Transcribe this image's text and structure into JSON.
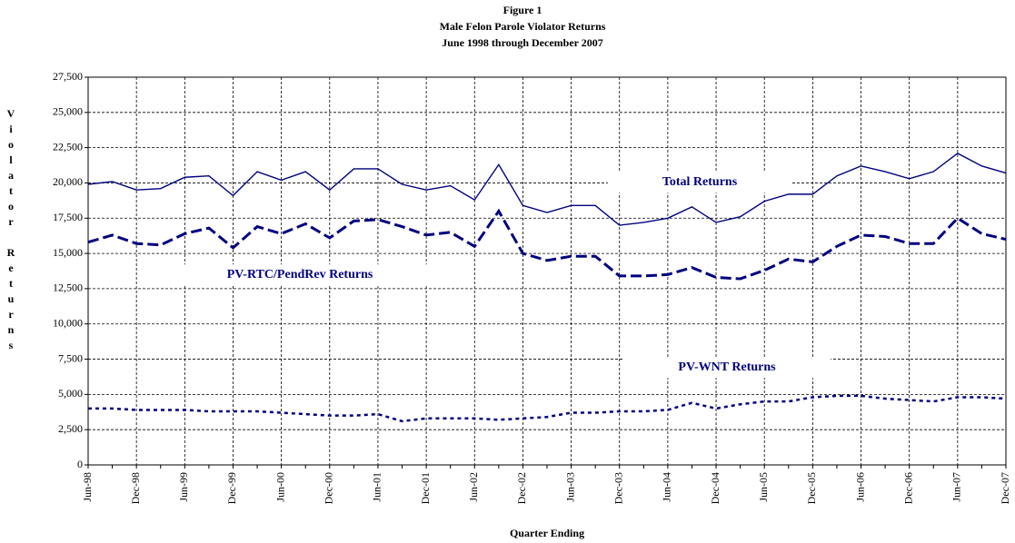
{
  "chart_data": {
    "type": "line",
    "title_lines": [
      "Figure 1",
      "Male Felon Parole Violator Returns",
      "June 1998 through December 2007"
    ],
    "x_label": "Quarter Ending",
    "y_label": "Violator Returns",
    "categories": [
      "Jun-98",
      null,
      "Dec-98",
      null,
      "Jun-99",
      null,
      "Dec-99",
      null,
      "Jun-00",
      null,
      "Dec-00",
      null,
      "Jun-01",
      null,
      "Dec-01",
      null,
      "Jun-02",
      null,
      "Dec-02",
      null,
      "Jun-03",
      null,
      "Dec-03",
      null,
      "Jun-04",
      null,
      "Dec-04",
      null,
      "Jun-05",
      null,
      "Dec-05",
      null,
      "Jun-06",
      null,
      "Dec-06",
      null,
      "Jun-07",
      null,
      "Dec-07"
    ],
    "series": [
      {
        "name": "Total Returns",
        "color": "#000080",
        "line_style": "solid",
        "values": [
          19900,
          20100,
          19500,
          19600,
          20400,
          20500,
          19100,
          20800,
          20200,
          20800,
          19500,
          21000,
          21000,
          19900,
          19500,
          19800,
          18800,
          21300,
          18400,
          17900,
          18400,
          18400,
          17000,
          17200,
          17500,
          18300,
          17200,
          17600,
          18700,
          19200,
          19200,
          20500,
          21200,
          20800,
          20300,
          20800,
          22100,
          21200,
          20700
        ]
      },
      {
        "name": "PV-RTC/PendRev Returns",
        "color": "#000080",
        "line_style": "dashed",
        "values": [
          15800,
          16300,
          15700,
          15600,
          16400,
          16800,
          15400,
          16900,
          16400,
          17100,
          16100,
          17300,
          17400,
          16900,
          16300,
          16500,
          15500,
          18000,
          15000,
          14500,
          14800,
          14800,
          13400,
          13400,
          13500,
          14000,
          13300,
          13200,
          13800,
          14600,
          14400,
          15500,
          16300,
          16200,
          15700,
          15700,
          17500,
          16400,
          16000
        ]
      },
      {
        "name": "PV-WNT Returns",
        "color": "#000080",
        "line_style": "dotted",
        "values": [
          4000,
          4000,
          3900,
          3900,
          3900,
          3800,
          3800,
          3800,
          3700,
          3600,
          3500,
          3500,
          3600,
          3100,
          3300,
          3300,
          3300,
          3200,
          3300,
          3400,
          3700,
          3700,
          3800,
          3800,
          3900,
          4400,
          4000,
          4300,
          4500,
          4500,
          4800,
          4900,
          4900,
          4700,
          4600,
          4500,
          4800,
          4800,
          4700
        ]
      }
    ],
    "ylim": [
      0,
      27500
    ],
    "yticks": [
      0,
      {
        "value": 2500,
        "label": "2,500"
      },
      {
        "value": 5000,
        "label": "5,000"
      },
      {
        "value": 7500,
        "label": "7,500"
      },
      {
        "value": 10000,
        "label": "10,000"
      },
      {
        "value": 12500,
        "label": "12,500"
      },
      {
        "value": 15000,
        "label": "15,000"
      },
      {
        "value": 17500,
        "label": "17,500"
      },
      {
        "value": 20000,
        "label": "20,000"
      },
      {
        "value": 22500,
        "label": "22,500"
      },
      {
        "value": 25000,
        "label": "25,000"
      },
      {
        "value": 27500,
        "label": "27,500"
      }
    ],
    "grid": true
  }
}
